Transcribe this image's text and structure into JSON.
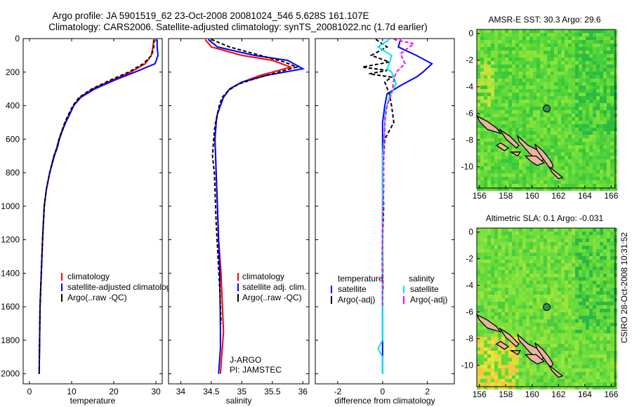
{
  "header": {
    "title_line1": "Argo profile: JA 5901519_62 23-Oct-2008 20081024_546 5.628S 161.107E",
    "title_line2": "Climatology: CARS2006. Satellite-adjusted climatology: synTS_20081022.nc (1.7d earlier)"
  },
  "credit": "CSIRO 28-Oct-2008 10:31:52",
  "colors": {
    "climatology": "#ff0000",
    "satellite": "#0000ff",
    "argo": "#000000",
    "sal_satellite": "#00e5ee",
    "sal_argo": "#ff00ff",
    "map_marker": "#2e8b57",
    "land": "#e8b4a0"
  },
  "chart_data": [
    {
      "id": "temperature",
      "type": "line",
      "xlabel": "temperature",
      "ylabel": "",
      "xlim": [
        -1.5,
        31.5
      ],
      "ylim": [
        2060,
        0
      ],
      "xticks": [
        0,
        10,
        20,
        30
      ],
      "yticks": [
        0,
        200,
        400,
        600,
        800,
        1000,
        1200,
        1400,
        1600,
        1800,
        2000
      ],
      "legend": [
        "climatology",
        "satellite-adjusted climatology",
        "Argo(..raw -QC)"
      ],
      "series": [
        {
          "name": "climatology",
          "color": "red",
          "style": "solid",
          "x": [
            29.5,
            29.3,
            28.9,
            27.5,
            24.0,
            19.5,
            15.0,
            12.0,
            10.5,
            9.5,
            8.5,
            7.7,
            7.0,
            6.5,
            5.8,
            4.8,
            4.0,
            3.5,
            3.1,
            2.8,
            2.5,
            2.3
          ],
          "y": [
            5,
            50,
            100,
            150,
            200,
            250,
            300,
            350,
            400,
            450,
            500,
            550,
            600,
            650,
            700,
            800,
            900,
            1000,
            1200,
            1400,
            1600,
            2000
          ]
        },
        {
          "name": "satellite",
          "color": "blue",
          "style": "solid",
          "x": [
            30.3,
            30.3,
            30.5,
            29.8,
            25.0,
            20.0,
            15.5,
            12.2,
            10.5,
            9.6,
            8.6,
            7.8,
            7.1,
            6.6,
            5.9,
            4.8,
            4.0,
            3.5,
            3.1,
            2.8,
            2.5,
            2.3
          ],
          "y": [
            5,
            50,
            100,
            150,
            200,
            250,
            300,
            350,
            400,
            450,
            500,
            550,
            600,
            650,
            700,
            800,
            900,
            1000,
            1200,
            1400,
            1600,
            2000
          ]
        },
        {
          "name": "Argo",
          "color": "black",
          "style": "dash",
          "x": [
            29.6,
            29.5,
            29.0,
            27.0,
            23.5,
            19.0,
            14.8,
            11.8,
            10.3,
            9.3,
            8.4,
            7.7,
            7.0,
            6.5,
            5.8,
            4.8,
            4.0,
            3.5,
            3.1,
            2.8,
            2.5,
            2.3
          ],
          "y": [
            5,
            50,
            100,
            150,
            200,
            250,
            300,
            350,
            400,
            450,
            500,
            550,
            600,
            650,
            700,
            800,
            900,
            1000,
            1200,
            1400,
            1600,
            2000
          ]
        }
      ]
    },
    {
      "id": "salinity",
      "type": "line",
      "xlabel": "salinity",
      "ylabel": "",
      "xlim": [
        33.8,
        36.1
      ],
      "ylim": [
        2060,
        0
      ],
      "xticks": [
        34,
        34.5,
        35,
        35.5,
        36
      ],
      "legend": [
        "climatology",
        "satellite adj. clim.",
        "Argo(..raw -QC)"
      ],
      "series": [
        {
          "name": "climatology",
          "color": "red",
          "style": "solid",
          "x": [
            34.4,
            34.5,
            35.0,
            35.5,
            35.8,
            35.3,
            35.0,
            34.8,
            34.7,
            34.65,
            34.6,
            34.58,
            34.57,
            34.56,
            34.57,
            34.58,
            34.6,
            34.62,
            34.66,
            34.7,
            34.68,
            34.65
          ],
          "y": [
            5,
            50,
            100,
            130,
            170,
            220,
            260,
            300,
            350,
            400,
            450,
            500,
            550,
            600,
            700,
            800,
            1000,
            1200,
            1400,
            1750,
            1850,
            2000
          ]
        },
        {
          "name": "satellite",
          "color": "blue",
          "style": "solid",
          "x": [
            34.45,
            34.6,
            35.2,
            35.75,
            36.0,
            35.4,
            35.0,
            34.8,
            34.7,
            34.65,
            34.6,
            34.58,
            34.57,
            34.56,
            34.57,
            34.58,
            34.6,
            34.62,
            34.64,
            34.65,
            34.65,
            34.62
          ],
          "y": [
            5,
            50,
            100,
            130,
            180,
            220,
            260,
            300,
            350,
            400,
            450,
            500,
            550,
            600,
            700,
            800,
            1000,
            1200,
            1400,
            1750,
            1850,
            2000
          ]
        },
        {
          "name": "Argo",
          "color": "black",
          "style": "dash",
          "x": [
            34.5,
            34.8,
            35.3,
            35.7,
            35.9,
            35.3,
            34.95,
            34.78,
            34.68,
            34.63,
            34.6,
            34.57,
            34.55,
            34.52,
            34.55,
            34.56,
            34.58,
            34.61,
            34.64,
            34.66
          ],
          "y": [
            5,
            50,
            100,
            140,
            170,
            230,
            270,
            310,
            350,
            400,
            450,
            500,
            550,
            700,
            800,
            900,
            1100,
            1300,
            1500,
            1700
          ]
        }
      ],
      "annotations": [
        "J-ARGO",
        "PI: JAMSTEC"
      ]
    },
    {
      "id": "difference",
      "type": "line",
      "xlabel": "difference from climatology",
      "ylabel": "",
      "xlim": [
        -3.0,
        3.2
      ],
      "ylim": [
        2060,
        0
      ],
      "xticks": [
        -2,
        0,
        2
      ],
      "legend_headers": [
        "temperature",
        "salinity"
      ],
      "legend": [
        "satellite",
        "Argo(-adj)",
        "satellite",
        "Argo(-adj)"
      ],
      "series": [
        {
          "name": "temperature satellite",
          "color": "blue",
          "style": "solid",
          "x": [
            0.8,
            0.7,
            1.5,
            2.2,
            1.8,
            1.5,
            0.8,
            0.2,
            0.1,
            0.05,
            0,
            0,
            0,
            0,
            0,
            0,
            0,
            0,
            0
          ],
          "y": [
            5,
            50,
            100,
            150,
            200,
            230,
            280,
            330,
            400,
            450,
            500,
            600,
            800,
            1000,
            1200,
            1400,
            1600,
            1800,
            2000
          ]
        },
        {
          "name": "temperature Argo",
          "color": "black",
          "style": "dash",
          "x": [
            -0.3,
            0.2,
            -0.5,
            0.3,
            -0.9,
            0.2,
            -0.6,
            0.4,
            0.1,
            0.3,
            0.4,
            0.5,
            0.1,
            0,
            0.05,
            0,
            0.02
          ],
          "y": [
            5,
            50,
            100,
            140,
            170,
            190,
            210,
            230,
            260,
            330,
            400,
            500,
            600,
            800,
            1000,
            1200,
            1500
          ]
        },
        {
          "name": "salinity satellite",
          "color": "cyan",
          "style": "solid",
          "x": [
            0.3,
            -0.2,
            0.4,
            0.3,
            0.2,
            0.4,
            0.5,
            0.6,
            0.3,
            0.1,
            0.1,
            0,
            0,
            0,
            0,
            0,
            0,
            -0.2,
            0,
            0
          ],
          "y": [
            5,
            50,
            100,
            150,
            180,
            200,
            230,
            270,
            350,
            450,
            550,
            700,
            1000,
            1400,
            1600,
            1700,
            1800,
            1850,
            1900,
            2000
          ]
        },
        {
          "name": "salinity Argo",
          "color": "magenta",
          "style": "dash",
          "x": [
            0.5,
            1.4,
            0.8,
            1.0,
            0.6,
            0.5,
            0.4,
            0.2,
            0.1,
            0.05,
            0.05,
            0,
            -0.02,
            0
          ],
          "y": [
            5,
            30,
            90,
            150,
            200,
            250,
            330,
            400,
            500,
            700,
            900,
            1100,
            1300,
            1600
          ]
        }
      ]
    },
    {
      "id": "sst_map",
      "type": "heatmap",
      "title": "AMSR-E SST: 30.3 Argo: 29.6",
      "xlim": [
        155.8,
        166.3
      ],
      "ylim": [
        -11.6,
        0.3
      ],
      "xticks": [
        156,
        158,
        160,
        162,
        164,
        166
      ],
      "yticks": [
        0,
        -2,
        -4,
        -6,
        -8,
        -10
      ],
      "marker": {
        "lon": 161.107,
        "lat": -5.628
      }
    },
    {
      "id": "sla_map",
      "type": "heatmap",
      "title": "Altimetric SLA: 0.1 Argo: -0.031",
      "xlim": [
        155.8,
        166.3
      ],
      "ylim": [
        -11.6,
        0.3
      ],
      "xticks": [
        156,
        158,
        160,
        162,
        164,
        166
      ],
      "yticks": [
        0,
        -2,
        -4,
        -6,
        -8,
        -10
      ],
      "marker": {
        "lon": 161.107,
        "lat": -5.628
      }
    }
  ]
}
